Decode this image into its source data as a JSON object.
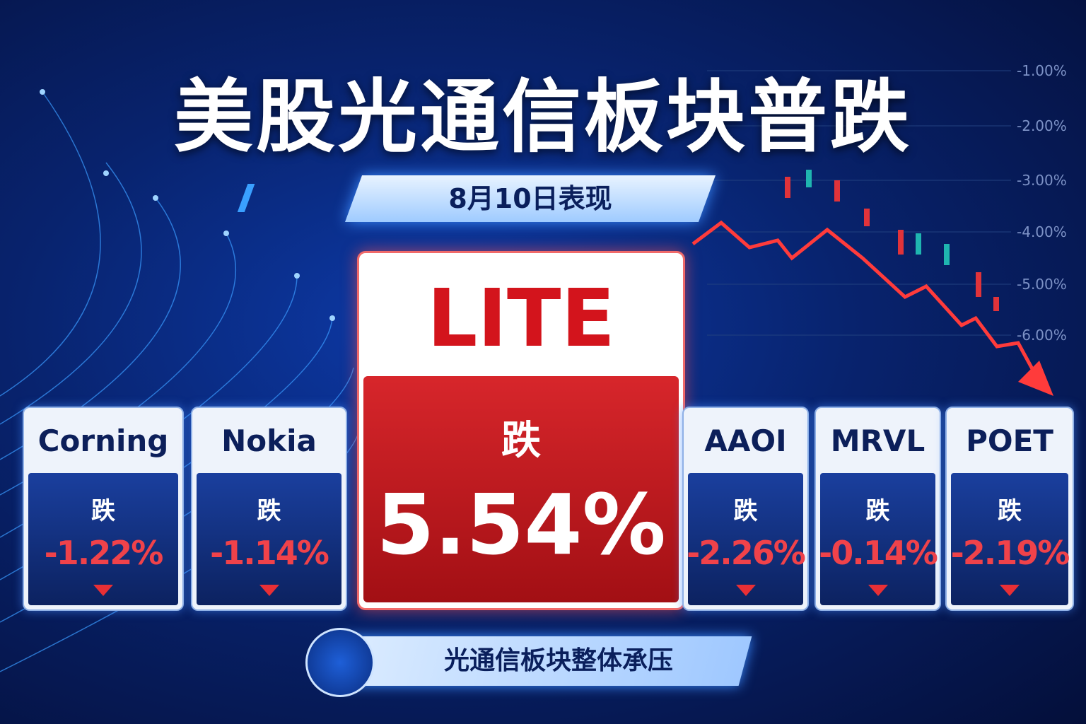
{
  "header": {
    "title": "美股光通信板块普跌",
    "date": "8月10日表现"
  },
  "featured": {
    "ticker": "LITE",
    "direction": "跌",
    "change": "5.54%"
  },
  "cards": [
    {
      "ticker": "Corning",
      "direction": "跌",
      "change": "-1.22%"
    },
    {
      "ticker": "Nokia",
      "direction": "跌",
      "change": "-1.14%"
    },
    {
      "ticker": "AAOI",
      "direction": "跌",
      "change": "-2.26%"
    },
    {
      "ticker": "MRVL",
      "direction": "跌",
      "change": "-0.14%"
    },
    {
      "ticker": "POET",
      "direction": "跌",
      "change": "-2.19%"
    }
  ],
  "background": {
    "axis_labels": [
      "-1.00%",
      "-2.00%",
      "-3.00%",
      "-4.00%",
      "-5.00%",
      "-6.00%"
    ]
  },
  "footer": {
    "text": "光通信板块整体承压"
  }
}
